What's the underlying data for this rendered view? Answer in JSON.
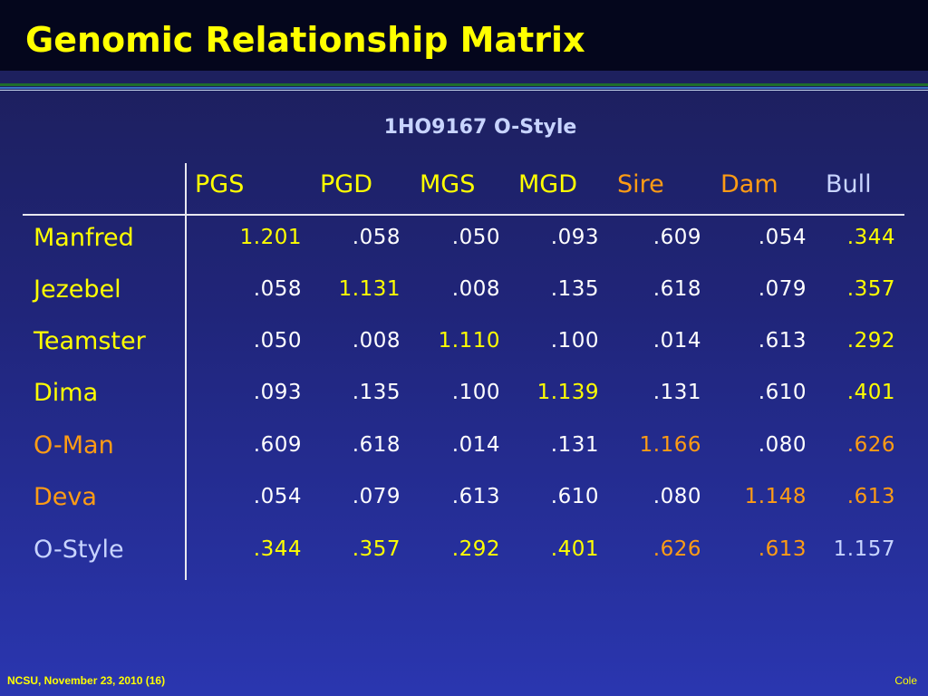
{
  "title": "Genomic Relationship Matrix",
  "subtitle": "1HO9167 O-Style",
  "colors": {
    "white": "#ffffff",
    "yellow": "#ffff00",
    "orange": "#ff9c14",
    "lavender": "#c8d4ff"
  },
  "columns": [
    {
      "label": "PGS",
      "color": "#ffff00"
    },
    {
      "label": "PGD",
      "color": "#ffff00"
    },
    {
      "label": "MGS",
      "color": "#ffff00"
    },
    {
      "label": "MGD",
      "color": "#ffff00"
    },
    {
      "label": "Sire",
      "color": "#ff9c14"
    },
    {
      "label": "Dam",
      "color": "#ff9c14"
    },
    {
      "label": "Bull",
      "color": "#c8d4ff"
    }
  ],
  "rows": [
    {
      "label": "Manfred",
      "color": "#ffff00",
      "values": [
        {
          "v": "1.201",
          "color": "#ffff00"
        },
        {
          "v": ".058",
          "color": "#ffffff"
        },
        {
          "v": ".050",
          "color": "#ffffff"
        },
        {
          "v": ".093",
          "color": "#ffffff"
        },
        {
          "v": ".609",
          "color": "#ffffff"
        },
        {
          "v": ".054",
          "color": "#ffffff"
        },
        {
          "v": ".344",
          "color": "#ffff00"
        }
      ]
    },
    {
      "label": "Jezebel",
      "color": "#ffff00",
      "values": [
        {
          "v": ".058",
          "color": "#ffffff"
        },
        {
          "v": "1.131",
          "color": "#ffff00"
        },
        {
          "v": ".008",
          "color": "#ffffff"
        },
        {
          "v": ".135",
          "color": "#ffffff"
        },
        {
          "v": ".618",
          "color": "#ffffff"
        },
        {
          "v": ".079",
          "color": "#ffffff"
        },
        {
          "v": ".357",
          "color": "#ffff00"
        }
      ]
    },
    {
      "label": "Teamster",
      "color": "#ffff00",
      "values": [
        {
          "v": ".050",
          "color": "#ffffff"
        },
        {
          "v": ".008",
          "color": "#ffffff"
        },
        {
          "v": "1.110",
          "color": "#ffff00"
        },
        {
          "v": ".100",
          "color": "#ffffff"
        },
        {
          "v": ".014",
          "color": "#ffffff"
        },
        {
          "v": ".613",
          "color": "#ffffff"
        },
        {
          "v": ".292",
          "color": "#ffff00"
        }
      ]
    },
    {
      "label": "Dima",
      "color": "#ffff00",
      "values": [
        {
          "v": ".093",
          "color": "#ffffff"
        },
        {
          "v": ".135",
          "color": "#ffffff"
        },
        {
          "v": ".100",
          "color": "#ffffff"
        },
        {
          "v": "1.139",
          "color": "#ffff00"
        },
        {
          "v": ".131",
          "color": "#ffffff"
        },
        {
          "v": ".610",
          "color": "#ffffff"
        },
        {
          "v": ".401",
          "color": "#ffff00"
        }
      ]
    },
    {
      "label": "O-Man",
      "color": "#ff9c14",
      "values": [
        {
          "v": ".609",
          "color": "#ffffff"
        },
        {
          "v": ".618",
          "color": "#ffffff"
        },
        {
          "v": ".014",
          "color": "#ffffff"
        },
        {
          "v": ".131",
          "color": "#ffffff"
        },
        {
          "v": "1.166",
          "color": "#ff9c14"
        },
        {
          "v": ".080",
          "color": "#ffffff"
        },
        {
          "v": ".626",
          "color": "#ff9c14"
        }
      ]
    },
    {
      "label": "Deva",
      "color": "#ff9c14",
      "values": [
        {
          "v": ".054",
          "color": "#ffffff"
        },
        {
          "v": ".079",
          "color": "#ffffff"
        },
        {
          "v": ".613",
          "color": "#ffffff"
        },
        {
          "v": ".610",
          "color": "#ffffff"
        },
        {
          "v": ".080",
          "color": "#ffffff"
        },
        {
          "v": "1.148",
          "color": "#ff9c14"
        },
        {
          "v": ".613",
          "color": "#ff9c14"
        }
      ]
    },
    {
      "label": "O-Style",
      "color": "#c8d4ff",
      "values": [
        {
          "v": ".344",
          "color": "#ffff00"
        },
        {
          "v": ".357",
          "color": "#ffff00"
        },
        {
          "v": ".292",
          "color": "#ffff00"
        },
        {
          "v": ".401",
          "color": "#ffff00"
        },
        {
          "v": ".626",
          "color": "#ff9c14"
        },
        {
          "v": ".613",
          "color": "#ff9c14"
        },
        {
          "v": "1.157",
          "color": "#c8d4ff"
        }
      ]
    }
  ],
  "footer": {
    "left": "NCSU, November 23, 2010 (16)",
    "right": "Cole"
  }
}
